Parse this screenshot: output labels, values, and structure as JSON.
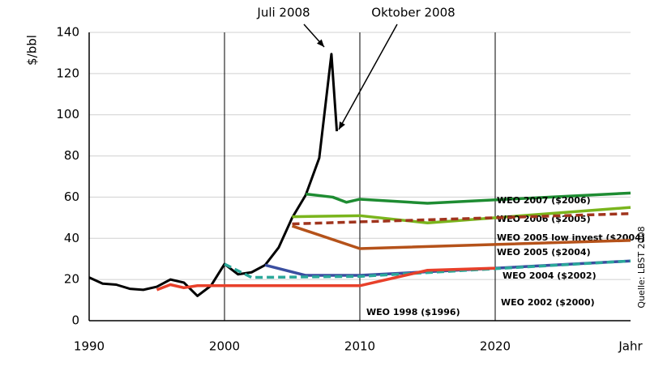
{
  "chart_data": {
    "type": "line",
    "y_label": "$/bbl",
    "source": "Quelle: LBST 2008",
    "annotations": [
      {
        "text": "Juli 2008",
        "x": 2007.9,
        "y": 129.5
      },
      {
        "text": "Oktober 2008",
        "x": 2008.3,
        "y": 92
      }
    ],
    "xlim": [
      1990,
      2030
    ],
    "xticks": [
      1990,
      2000,
      2010,
      2020,
      {
        "value": 2030,
        "label": "Jahr"
      }
    ],
    "ylim": [
      0,
      140
    ],
    "yticks": [
      0,
      20,
      40,
      60,
      80,
      100,
      120,
      140
    ],
    "grid": true,
    "series": [
      {
        "name": "Ölpreis",
        "color": "#000000",
        "dashed": false,
        "labeled": false,
        "x": [
          1990,
          1991,
          1992,
          1993,
          1994,
          1995,
          1996,
          1997,
          1998,
          1999,
          2000,
          2001,
          2002,
          2003,
          2004,
          2005,
          2006,
          2007,
          2007.9,
          2008.3
        ],
        "values": [
          21,
          18,
          17.5,
          15.5,
          15,
          16.5,
          20,
          18.5,
          12,
          17,
          27.5,
          22.5,
          23.5,
          27,
          35.5,
          50,
          61,
          79,
          129.5,
          92
        ]
      },
      {
        "name": "WEO 2007 ($2006)",
        "color": "#1e8c32",
        "dashed": false,
        "x": [
          2006,
          2008,
          2009,
          2010,
          2015,
          2030
        ],
        "values": [
          61.5,
          60,
          57.5,
          59,
          57,
          62
        ]
      },
      {
        "name": "WEO 2006 ($2005)",
        "color": "#7ab51d",
        "dashed": false,
        "x": [
          2005,
          2010,
          2015,
          2030
        ],
        "values": [
          50.5,
          51,
          47.5,
          55
        ]
      },
      {
        "name": "WEO 2005 low invest ($2004)",
        "color": "#a0341d",
        "dashed": true,
        "x": [
          2005,
          2010,
          2030
        ],
        "values": [
          47,
          48,
          52
        ]
      },
      {
        "name": "WEO 2005 ($2004)",
        "color": "#b5521a",
        "dashed": false,
        "x": [
          2005,
          2010,
          2030
        ],
        "values": [
          46,
          35,
          39
        ]
      },
      {
        "name": "WEO 2004 ($2002)",
        "color": "#3a4ea0",
        "dashed": false,
        "x": [
          2003,
          2006,
          2010,
          2030
        ],
        "values": [
          27,
          22,
          22,
          29
        ]
      },
      {
        "name": "WEO 2002 ($2000)",
        "color": "#2aa89a",
        "dashed": true,
        "x": [
          2000,
          2002,
          2010,
          2030
        ],
        "values": [
          27.5,
          21,
          21.5,
          29
        ]
      },
      {
        "name": "WEO 1998 ($1996)",
        "color": "#e8402a",
        "dashed": false,
        "x": [
          1995,
          1996,
          1997,
          1998,
          2010,
          2015,
          2020
        ],
        "values": [
          15,
          17.5,
          16,
          17,
          17,
          24.5,
          25.5
        ]
      }
    ]
  }
}
